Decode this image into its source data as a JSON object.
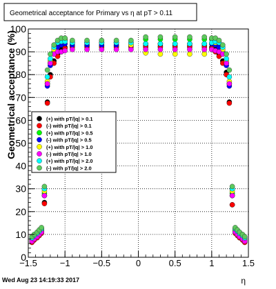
{
  "chart_data": {
    "type": "scatter",
    "title": "Geometrical acceptance for Primary vs    η at pT > 0.11",
    "xlabel": "η",
    "ylabel": "Geometrical acceptance (%)",
    "xlim": [
      -1.5,
      1.5
    ],
    "ylim": [
      0,
      100
    ],
    "x_ticks": [
      {
        "v": -1.5,
        "label": "−1.5"
      },
      {
        "v": -1.0,
        "label": "−1"
      },
      {
        "v": -0.5,
        "label": "−0.5"
      },
      {
        "v": 0.0,
        "label": "0"
      },
      {
        "v": 0.5,
        "label": "0.5"
      },
      {
        "v": 1.0,
        "label": "1"
      },
      {
        "v": 1.5,
        "label": "1.5"
      }
    ],
    "y_ticks": [
      0,
      10,
      20,
      30,
      40,
      50,
      60,
      70,
      80,
      90,
      100
    ],
    "grid": true,
    "legend_position": "middle-left",
    "footer": "Wed Aug 23 14:19:33 2017",
    "series": [
      {
        "name": "(+) with pT/|q| > 0.1",
        "color": "#000000",
        "points": [
          [
            -1.45,
            7
          ],
          [
            -1.42,
            8
          ],
          [
            -1.38,
            9
          ],
          [
            -1.35,
            10
          ],
          [
            -1.32,
            11
          ],
          [
            -1.28,
            24
          ],
          [
            -1.24,
            68
          ],
          [
            -1.2,
            80
          ],
          [
            -1.15,
            86
          ],
          [
            -1.1,
            89
          ],
          [
            -1.05,
            91
          ],
          [
            -1.0,
            92
          ],
          [
            -0.9,
            92.5
          ],
          [
            -0.7,
            92.5
          ],
          [
            -0.5,
            92.5
          ],
          [
            -0.3,
            92.5
          ],
          [
            -0.1,
            92.5
          ],
          [
            0.1,
            92.5
          ],
          [
            0.3,
            92.5
          ],
          [
            0.5,
            92.5
          ],
          [
            0.7,
            92.5
          ],
          [
            0.9,
            92.5
          ],
          [
            1.0,
            92
          ],
          [
            1.05,
            91
          ],
          [
            1.1,
            89
          ],
          [
            1.15,
            86
          ],
          [
            1.2,
            81
          ],
          [
            1.24,
            68
          ],
          [
            1.28,
            23
          ],
          [
            1.32,
            11
          ],
          [
            1.35,
            10
          ],
          [
            1.38,
            9
          ],
          [
            1.42,
            8
          ],
          [
            1.45,
            7
          ]
        ]
      },
      {
        "name": "(-) with pT/|q| > 0.1",
        "color": "#ff0000",
        "points": [
          [
            -1.45,
            6.5
          ],
          [
            -1.42,
            7.5
          ],
          [
            -1.38,
            8.5
          ],
          [
            -1.35,
            9.5
          ],
          [
            -1.32,
            10.5
          ],
          [
            -1.28,
            23.5
          ],
          [
            -1.24,
            67.5
          ],
          [
            -1.2,
            79
          ],
          [
            -1.15,
            85
          ],
          [
            -1.1,
            88
          ],
          [
            -1.05,
            90
          ],
          [
            -1.0,
            91.5
          ],
          [
            -0.9,
            92
          ],
          [
            -0.7,
            92
          ],
          [
            -0.5,
            92
          ],
          [
            -0.3,
            92
          ],
          [
            -0.1,
            92
          ],
          [
            0.1,
            92
          ],
          [
            0.3,
            92
          ],
          [
            0.5,
            92
          ],
          [
            0.7,
            92
          ],
          [
            0.9,
            92
          ],
          [
            1.0,
            91.5
          ],
          [
            1.05,
            90
          ],
          [
            1.1,
            88
          ],
          [
            1.15,
            85
          ],
          [
            1.2,
            80
          ],
          [
            1.24,
            67.5
          ],
          [
            1.28,
            23
          ],
          [
            1.32,
            10.5
          ],
          [
            1.35,
            9.5
          ],
          [
            1.38,
            8.5
          ],
          [
            1.42,
            7.5
          ],
          [
            1.45,
            6.5
          ]
        ]
      },
      {
        "name": "(+) with pT/|q| > 0.5",
        "color": "#00ff00",
        "points": [
          [
            -1.45,
            8
          ],
          [
            -1.42,
            9
          ],
          [
            -1.38,
            10
          ],
          [
            -1.35,
            11
          ],
          [
            -1.32,
            12
          ],
          [
            -1.28,
            28
          ],
          [
            -1.24,
            76
          ],
          [
            -1.2,
            85
          ],
          [
            -1.15,
            90
          ],
          [
            -1.1,
            93
          ],
          [
            -1.05,
            95
          ],
          [
            -1.0,
            95.5
          ],
          [
            -0.9,
            94
          ],
          [
            -0.7,
            94
          ],
          [
            -0.5,
            94
          ],
          [
            -0.3,
            94
          ],
          [
            -0.1,
            94
          ],
          [
            0.1,
            95.5
          ],
          [
            0.3,
            95.5
          ],
          [
            0.5,
            95.5
          ],
          [
            0.7,
            95.5
          ],
          [
            0.9,
            95.5
          ],
          [
            1.0,
            95.5
          ],
          [
            1.05,
            95
          ],
          [
            1.1,
            93
          ],
          [
            1.15,
            90
          ],
          [
            1.2,
            85
          ],
          [
            1.24,
            76
          ],
          [
            1.28,
            28
          ],
          [
            1.32,
            12
          ],
          [
            1.35,
            11
          ],
          [
            1.38,
            10
          ],
          [
            1.42,
            9
          ],
          [
            1.45,
            8
          ]
        ]
      },
      {
        "name": "(-) with pT/|q| > 0.5",
        "color": "#0000ff",
        "points": [
          [
            -1.45,
            7.5
          ],
          [
            -1.42,
            8.5
          ],
          [
            -1.38,
            9.5
          ],
          [
            -1.35,
            10.5
          ],
          [
            -1.32,
            11.5
          ],
          [
            -1.28,
            27
          ],
          [
            -1.24,
            75
          ],
          [
            -1.2,
            84
          ],
          [
            -1.15,
            89
          ],
          [
            -1.1,
            92
          ],
          [
            -1.05,
            93
          ],
          [
            -1.0,
            93.5
          ],
          [
            -0.9,
            93
          ],
          [
            -0.7,
            93
          ],
          [
            -0.5,
            93
          ],
          [
            -0.3,
            93
          ],
          [
            -0.1,
            93
          ],
          [
            0.1,
            93.5
          ],
          [
            0.3,
            93.5
          ],
          [
            0.5,
            93.5
          ],
          [
            0.7,
            93.5
          ],
          [
            0.9,
            93.5
          ],
          [
            1.0,
            93.5
          ],
          [
            1.05,
            93
          ],
          [
            1.1,
            92
          ],
          [
            1.15,
            89
          ],
          [
            1.2,
            84
          ],
          [
            1.24,
            75
          ],
          [
            1.28,
            27
          ],
          [
            1.32,
            11.5
          ],
          [
            1.35,
            10.5
          ],
          [
            1.38,
            9.5
          ],
          [
            1.42,
            8.5
          ],
          [
            1.45,
            7.5
          ]
        ]
      },
      {
        "name": "(+) with pT/|q| > 1.0",
        "color": "#ffff00",
        "points": [
          [
            -1.45,
            8
          ],
          [
            -1.42,
            9
          ],
          [
            -1.38,
            10
          ],
          [
            -1.35,
            11
          ],
          [
            -1.32,
            12
          ],
          [
            -1.28,
            29
          ],
          [
            -1.24,
            77
          ],
          [
            -1.2,
            86
          ],
          [
            -1.15,
            91
          ],
          [
            -1.1,
            94
          ],
          [
            -1.05,
            95
          ],
          [
            -1.0,
            95
          ],
          [
            -0.9,
            94
          ],
          [
            -0.7,
            94
          ],
          [
            -0.5,
            94
          ],
          [
            -0.3,
            94
          ],
          [
            -0.1,
            93
          ],
          [
            0.1,
            89.5
          ],
          [
            0.3,
            89
          ],
          [
            0.5,
            89
          ],
          [
            0.7,
            89
          ],
          [
            0.9,
            89
          ],
          [
            1.0,
            91
          ],
          [
            1.05,
            94
          ],
          [
            1.1,
            94
          ],
          [
            1.15,
            91
          ],
          [
            1.2,
            86
          ],
          [
            1.24,
            77
          ],
          [
            1.28,
            29
          ],
          [
            1.32,
            12
          ],
          [
            1.35,
            11
          ],
          [
            1.38,
            10
          ],
          [
            1.42,
            9
          ],
          [
            1.45,
            8
          ]
        ]
      },
      {
        "name": "(-) with pT/|q| > 1.0",
        "color": "#ff00ff",
        "points": [
          [
            -1.45,
            7
          ],
          [
            -1.42,
            8
          ],
          [
            -1.38,
            9
          ],
          [
            -1.35,
            10
          ],
          [
            -1.32,
            11
          ],
          [
            -1.28,
            27
          ],
          [
            -1.24,
            76
          ],
          [
            -1.2,
            85
          ],
          [
            -1.15,
            89
          ],
          [
            -1.1,
            90
          ],
          [
            -1.05,
            90
          ],
          [
            -1.0,
            90.5
          ],
          [
            -0.9,
            91
          ],
          [
            -0.7,
            91
          ],
          [
            -0.5,
            91
          ],
          [
            -0.3,
            91
          ],
          [
            -0.1,
            91
          ],
          [
            0.1,
            91
          ],
          [
            0.3,
            91
          ],
          [
            0.5,
            91
          ],
          [
            0.7,
            91
          ],
          [
            0.9,
            91
          ],
          [
            1.0,
            91
          ],
          [
            1.05,
            90.5
          ],
          [
            1.1,
            90
          ],
          [
            1.15,
            89
          ],
          [
            1.2,
            85
          ],
          [
            1.24,
            76
          ],
          [
            1.28,
            27
          ],
          [
            1.32,
            11
          ],
          [
            1.35,
            10
          ],
          [
            1.38,
            9
          ],
          [
            1.42,
            8
          ],
          [
            1.45,
            7
          ]
        ]
      },
      {
        "name": "(+) with pT/|q| > 2.0",
        "color": "#00ffff",
        "points": [
          [
            -1.45,
            8.5
          ],
          [
            -1.42,
            9.5
          ],
          [
            -1.38,
            10.5
          ],
          [
            -1.35,
            11.5
          ],
          [
            -1.32,
            12.5
          ],
          [
            -1.28,
            30
          ],
          [
            -1.24,
            79
          ],
          [
            -1.2,
            87
          ],
          [
            -1.15,
            92
          ],
          [
            -1.1,
            94
          ],
          [
            -1.05,
            94.5
          ],
          [
            -1.0,
            94.5
          ],
          [
            -0.9,
            94
          ],
          [
            -0.7,
            94
          ],
          [
            -0.5,
            94
          ],
          [
            -0.3,
            94
          ],
          [
            -0.1,
            94
          ],
          [
            0.1,
            93.5
          ],
          [
            0.3,
            93.5
          ],
          [
            0.5,
            93.5
          ],
          [
            0.7,
            93.5
          ],
          [
            0.9,
            93.5
          ],
          [
            1.0,
            94
          ],
          [
            1.05,
            94.5
          ],
          [
            1.1,
            94
          ],
          [
            1.15,
            92
          ],
          [
            1.2,
            87
          ],
          [
            1.24,
            79
          ],
          [
            1.28,
            30
          ],
          [
            1.32,
            12.5
          ],
          [
            1.35,
            11.5
          ],
          [
            1.38,
            10.5
          ],
          [
            1.42,
            9.5
          ],
          [
            1.45,
            8.5
          ]
        ]
      },
      {
        "name": "(-) with pT/|q| > 2.0",
        "color": "#5ec95e",
        "points": [
          [
            -1.45,
            9
          ],
          [
            -1.42,
            10
          ],
          [
            -1.38,
            11
          ],
          [
            -1.35,
            12
          ],
          [
            -1.32,
            13
          ],
          [
            -1.28,
            31
          ],
          [
            -1.24,
            82
          ],
          [
            -1.2,
            89
          ],
          [
            -1.15,
            93
          ],
          [
            -1.1,
            95
          ],
          [
            -1.05,
            96
          ],
          [
            -1.0,
            96
          ],
          [
            -0.9,
            95
          ],
          [
            -0.7,
            95
          ],
          [
            -0.5,
            95
          ],
          [
            -0.3,
            95
          ],
          [
            -0.1,
            95
          ],
          [
            0.1,
            96.5
          ],
          [
            0.3,
            96.5
          ],
          [
            0.5,
            96.5
          ],
          [
            0.7,
            96.5
          ],
          [
            0.9,
            96.5
          ],
          [
            1.0,
            96
          ],
          [
            1.05,
            96
          ],
          [
            1.1,
            95
          ],
          [
            1.15,
            93
          ],
          [
            1.2,
            89
          ],
          [
            1.24,
            82
          ],
          [
            1.28,
            31
          ],
          [
            1.32,
            13
          ],
          [
            1.35,
            12
          ],
          [
            1.38,
            11
          ],
          [
            1.42,
            10
          ],
          [
            1.45,
            9
          ]
        ]
      }
    ]
  }
}
